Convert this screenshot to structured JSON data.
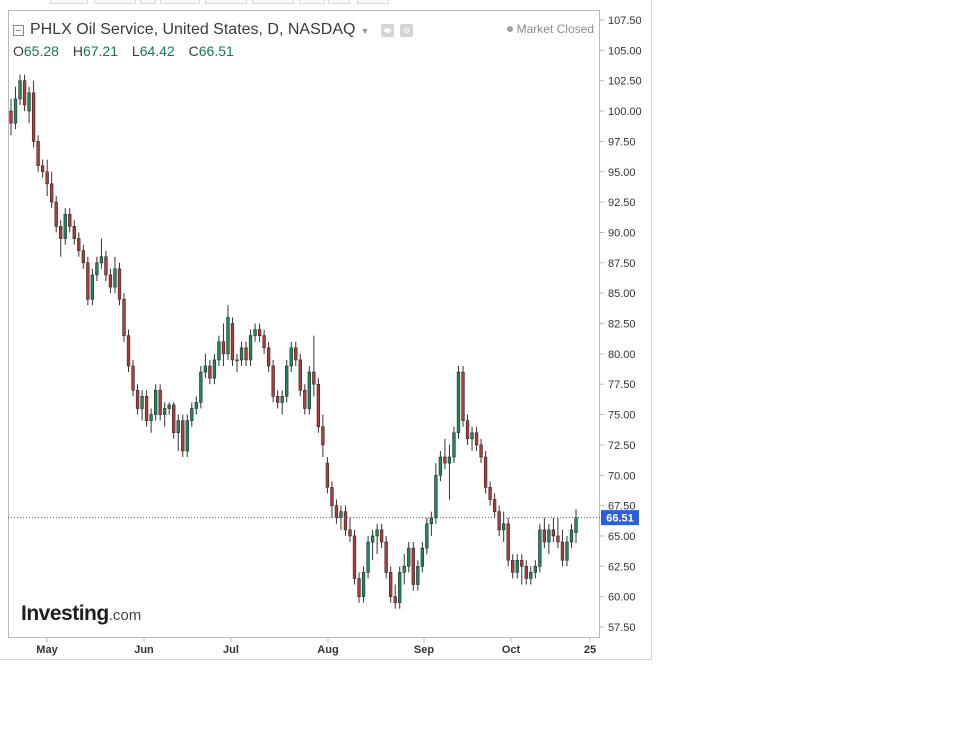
{
  "header": {
    "title": "PHLX Oil Service, United States, D, NASDAQ",
    "market_status": "Market Closed"
  },
  "ohlc": {
    "open_key": "O",
    "open": "65.28",
    "high_key": "H",
    "high": "67.21",
    "low_key": "L",
    "low": "64.42",
    "close_key": "C",
    "close": "66.51"
  },
  "branding": {
    "logo_main": "Investing",
    "logo_tld": ".com"
  },
  "colors": {
    "up": "#1e8a5c",
    "down": "#b43a3a",
    "last_price_line": "#2c5de0",
    "axis": "#b9b9b9"
  },
  "icons": [
    "collapse-icon",
    "chevron-down-icon",
    "eye-icon",
    "gear-icon"
  ],
  "chart_data": {
    "type": "candlestick",
    "title": "PHLX Oil Service, United States, D, NASDAQ",
    "ylim": [
      56.5,
      108.3
    ],
    "y_ticks": [
      "107.50",
      "105.00",
      "102.50",
      "100.00",
      "97.50",
      "95.00",
      "92.50",
      "90.00",
      "87.50",
      "85.00",
      "82.50",
      "80.00",
      "77.50",
      "75.00",
      "72.50",
      "70.00",
      "67.50",
      "65.00",
      "62.50",
      "60.00",
      "57.50"
    ],
    "x_ticks": [
      "May",
      "Jun",
      "Jul",
      "Aug",
      "Sep",
      "Oct",
      "25"
    ],
    "last_price": 66.51,
    "last_price_label": "66.51",
    "candles": [
      [
        100,
        101,
        98,
        99
      ],
      [
        99,
        102,
        98.5,
        101
      ],
      [
        101,
        103,
        100.5,
        102.5
      ],
      [
        102.5,
        103,
        100,
        100.5
      ],
      [
        100,
        102,
        99,
        101.5
      ],
      [
        101.5,
        102.5,
        97,
        97.5
      ],
      [
        97.5,
        98,
        95,
        95.5
      ],
      [
        95.5,
        96,
        94.5,
        95
      ],
      [
        95,
        96,
        93,
        94
      ],
      [
        94,
        95,
        92,
        92.5
      ],
      [
        92.5,
        93,
        90,
        90.5
      ],
      [
        90.5,
        91,
        88,
        89.5
      ],
      [
        89.5,
        92,
        89,
        91.5
      ],
      [
        91.5,
        92,
        90,
        90.5
      ],
      [
        90.5,
        91,
        89,
        89.5
      ],
      [
        89.5,
        90,
        88,
        88.5
      ],
      [
        88.5,
        89,
        87,
        87.5
      ],
      [
        87.5,
        88,
        84,
        84.5
      ],
      [
        84.5,
        87,
        84,
        86.5
      ],
      [
        86.5,
        88,
        86,
        87.5
      ],
      [
        87.5,
        89.5,
        87,
        88
      ],
      [
        88,
        88.5,
        86,
        86.5
      ],
      [
        86.5,
        87,
        85,
        85.5
      ],
      [
        85.5,
        88,
        85,
        87
      ],
      [
        87,
        87.5,
        84,
        84.5
      ],
      [
        84.5,
        85,
        81,
        81.5
      ],
      [
        81.5,
        82,
        78.5,
        79
      ],
      [
        79,
        79.5,
        76.5,
        77
      ],
      [
        77,
        77.5,
        75,
        75.5
      ],
      [
        75.5,
        77,
        74.5,
        76.5
      ],
      [
        76.5,
        77,
        74,
        74.5
      ],
      [
        74.5,
        75.5,
        73.5,
        75
      ],
      [
        75,
        77.5,
        74.5,
        77
      ],
      [
        77,
        77.5,
        74.5,
        75
      ],
      [
        75,
        76,
        74,
        75.5
      ],
      [
        75.5,
        76,
        75,
        75.8
      ],
      [
        75.8,
        76,
        73,
        73.5
      ],
      [
        73.5,
        75,
        72,
        74.5
      ],
      [
        74.5,
        75,
        71.5,
        72
      ],
      [
        72,
        75,
        71.5,
        74.5
      ],
      [
        74.5,
        76,
        74,
        75.5
      ],
      [
        75.5,
        76.5,
        75,
        76
      ],
      [
        76,
        79,
        75.5,
        78.5
      ],
      [
        78.5,
        80,
        78,
        79
      ],
      [
        79,
        79.5,
        77.5,
        78
      ],
      [
        78,
        80,
        77.5,
        79.5
      ],
      [
        79.5,
        81.5,
        79,
        81
      ],
      [
        81,
        82.5,
        79,
        80
      ],
      [
        80,
        84,
        79.5,
        83
      ],
      [
        82.5,
        83,
        79,
        79.5
      ],
      [
        79.5,
        80,
        78.5,
        79.5
      ],
      [
        79.5,
        81,
        79,
        80.5
      ],
      [
        80.5,
        81,
        79,
        79.5
      ],
      [
        79.5,
        82,
        79,
        81.5
      ],
      [
        81.5,
        82.5,
        81,
        82
      ],
      [
        82,
        82.5,
        81,
        81.5
      ],
      [
        81.5,
        82,
        80,
        80.5
      ],
      [
        80.5,
        81,
        78.5,
        79
      ],
      [
        79,
        79.5,
        76,
        76.5
      ],
      [
        76.5,
        77,
        75.5,
        76
      ],
      [
        76,
        77,
        75,
        76.5
      ],
      [
        76.5,
        79.5,
        76,
        79
      ],
      [
        79,
        81,
        78.5,
        80.5
      ],
      [
        80.5,
        81,
        79,
        79.5
      ],
      [
        79.5,
        80,
        76.5,
        77
      ],
      [
        77,
        77.5,
        75,
        75.5
      ],
      [
        75.5,
        79,
        75,
        78.5
      ],
      [
        78.5,
        81.5,
        76.5,
        77.5
      ],
      [
        77.5,
        78,
        73.5,
        74
      ],
      [
        74,
        75,
        71.5,
        72.5
      ],
      [
        71,
        71.5,
        68.5,
        69
      ],
      [
        69,
        69.5,
        66.5,
        67.5
      ],
      [
        67.5,
        68,
        66,
        66.5
      ],
      [
        66.5,
        67.5,
        65.5,
        67
      ],
      [
        67,
        67.5,
        65,
        65.5
      ],
      [
        65.5,
        66.5,
        64.5,
        65
      ],
      [
        65,
        65.5,
        61,
        61.5
      ],
      [
        61.5,
        62,
        59.5,
        60
      ],
      [
        60,
        62.5,
        59.5,
        62
      ],
      [
        62,
        65,
        61.5,
        64.5
      ],
      [
        64.5,
        65.5,
        63,
        65
      ],
      [
        65,
        66,
        63.5,
        65.5
      ],
      [
        65.5,
        66,
        64,
        64.5
      ],
      [
        64.5,
        65,
        61.5,
        62
      ],
      [
        62,
        62.5,
        59.5,
        60
      ],
      [
        60,
        61,
        59,
        59.5
      ],
      [
        59.5,
        62.5,
        59,
        62
      ],
      [
        62,
        63.5,
        61,
        62.5
      ],
      [
        62.5,
        64.5,
        62,
        64
      ],
      [
        64,
        64.5,
        60.5,
        61
      ],
      [
        61,
        63,
        60.5,
        62.5
      ],
      [
        62.5,
        64.5,
        62,
        64
      ],
      [
        64,
        66.5,
        63.5,
        66
      ],
      [
        66,
        67,
        65,
        66.5
      ],
      [
        66.5,
        71,
        66,
        70
      ],
      [
        70,
        72,
        69.5,
        71.5
      ],
      [
        71.5,
        73,
        70.5,
        71
      ],
      [
        71,
        72.5,
        68,
        71.5
      ],
      [
        71.5,
        74,
        71,
        73.5
      ],
      [
        73.5,
        79,
        73,
        78.5
      ],
      [
        78.5,
        79,
        74,
        74.5
      ],
      [
        74.5,
        75,
        72.5,
        73
      ],
      [
        73,
        74,
        72,
        73.5
      ],
      [
        73.5,
        74,
        72,
        72.5
      ],
      [
        72.5,
        73,
        71,
        71.5
      ],
      [
        71.5,
        72,
        68.5,
        69
      ],
      [
        69,
        69.5,
        67.5,
        68
      ],
      [
        68,
        68.5,
        66.5,
        67
      ],
      [
        67,
        67.5,
        65,
        65.5
      ],
      [
        65.5,
        67,
        64.5,
        66
      ],
      [
        66,
        66.5,
        62.5,
        63
      ],
      [
        63,
        63.5,
        61.5,
        62
      ],
      [
        62,
        63.5,
        61.5,
        63
      ],
      [
        63,
        63.5,
        61,
        62.5
      ],
      [
        62.5,
        63,
        61,
        61.5
      ],
      [
        61.5,
        62.5,
        61,
        62
      ],
      [
        62,
        63,
        61.5,
        62.5
      ],
      [
        62.5,
        66,
        62,
        65.5
      ],
      [
        65.5,
        66.5,
        64,
        64.5
      ],
      [
        64.5,
        66,
        63.5,
        65.5
      ],
      [
        65.5,
        66.5,
        64.5,
        65
      ],
      [
        65,
        66.5,
        64,
        64.5
      ],
      [
        64.5,
        65.5,
        62.5,
        63
      ],
      [
        63,
        65,
        62.5,
        64.5
      ],
      [
        64.5,
        66,
        64,
        65.5
      ],
      [
        65.28,
        67.21,
        64.42,
        66.51
      ]
    ]
  }
}
